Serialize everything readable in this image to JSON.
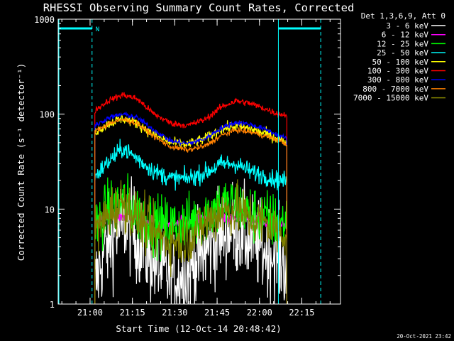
{
  "chart_data": {
    "type": "line",
    "title": "RHESSI Observing Summary Count Rates, Corrected",
    "xlabel": "Start Time (12-Oct-14 20:48:42)",
    "ylabel": "Corrected Count Rate (s⁻¹ detector⁻¹)",
    "yscale": "log",
    "ylim": [
      1,
      1000
    ],
    "xlim_minutes_after_start": [
      0,
      100
    ],
    "x_ticks": [
      "21:00",
      "21:15",
      "21:30",
      "21:45",
      "22:00",
      "22:15"
    ],
    "y_ticks": [
      "1",
      "10",
      "100",
      "1000"
    ],
    "legend_title": "Det 1,3,6,9, Att 0",
    "legend_position": "right, outside plot",
    "footer_date": "20-Oct-2021 23:42",
    "night_marker": "N",
    "data_window_minutes": [
      13,
      81
    ],
    "series": [
      {
        "name": "3 - 6 keV",
        "color": "#ffffff",
        "noise": 0.35,
        "min": 1,
        "profile": [
          [
            13,
            1.5
          ],
          [
            16,
            3.5
          ],
          [
            20,
            5.5
          ],
          [
            24,
            7.5
          ],
          [
            28,
            5
          ],
          [
            33,
            3
          ],
          [
            38,
            2
          ],
          [
            45,
            2
          ],
          [
            52,
            3.5
          ],
          [
            57,
            5.5
          ],
          [
            62,
            6.5
          ],
          [
            67,
            5
          ],
          [
            72,
            4
          ],
          [
            78,
            3
          ],
          [
            81,
            2.5
          ]
        ]
      },
      {
        "name": "6 - 12 keV",
        "color": "#ff00ff",
        "noise": 0.05,
        "min": 1,
        "profile": [
          [
            13,
            7.5
          ],
          [
            17,
            8
          ],
          [
            22,
            8.5
          ],
          [
            26,
            8.5
          ],
          [
            30,
            7.5
          ],
          [
            36,
            7
          ],
          [
            42,
            7
          ],
          [
            48,
            7.5
          ],
          [
            54,
            8
          ],
          [
            60,
            8
          ],
          [
            66,
            8
          ],
          [
            72,
            7.5
          ],
          [
            78,
            7
          ],
          [
            81,
            7
          ]
        ]
      },
      {
        "name": "12 - 25 keV",
        "color": "#00ff00",
        "noise": 0.22,
        "min": 1,
        "profile": [
          [
            13,
            6.5
          ],
          [
            18,
            10
          ],
          [
            23,
            12
          ],
          [
            28,
            9
          ],
          [
            34,
            7
          ],
          [
            40,
            6.5
          ],
          [
            46,
            7
          ],
          [
            52,
            9
          ],
          [
            58,
            11
          ],
          [
            63,
            11
          ],
          [
            68,
            9
          ],
          [
            74,
            8
          ],
          [
            78,
            7
          ],
          [
            81,
            7
          ]
        ]
      },
      {
        "name": "25 - 50 keV",
        "color": "#00ffff",
        "noise": 0.07,
        "min": 1,
        "profile": [
          [
            13,
            22
          ],
          [
            18,
            32
          ],
          [
            23,
            44
          ],
          [
            28,
            34
          ],
          [
            34,
            25
          ],
          [
            40,
            21
          ],
          [
            46,
            21
          ],
          [
            52,
            24
          ],
          [
            58,
            30
          ],
          [
            63,
            30
          ],
          [
            68,
            25
          ],
          [
            74,
            22
          ],
          [
            78,
            20
          ],
          [
            81,
            20
          ]
        ]
      },
      {
        "name": "50 - 100 keV",
        "color": "#ffff00",
        "noise": 0.04,
        "min": 1,
        "profile": [
          [
            13,
            65
          ],
          [
            18,
            80
          ],
          [
            23,
            90
          ],
          [
            28,
            80
          ],
          [
            34,
            60
          ],
          [
            40,
            50
          ],
          [
            46,
            48
          ],
          [
            52,
            55
          ],
          [
            58,
            70
          ],
          [
            63,
            75
          ],
          [
            68,
            70
          ],
          [
            74,
            62
          ],
          [
            78,
            55
          ],
          [
            81,
            50
          ]
        ]
      },
      {
        "name": "100 - 300 keV",
        "color": "#ff0000",
        "noise": 0.025,
        "min": 1,
        "profile": [
          [
            13,
            110
          ],
          [
            18,
            140
          ],
          [
            23,
            160
          ],
          [
            28,
            145
          ],
          [
            34,
            100
          ],
          [
            40,
            80
          ],
          [
            46,
            76
          ],
          [
            52,
            88
          ],
          [
            58,
            120
          ],
          [
            63,
            138
          ],
          [
            68,
            130
          ],
          [
            74,
            112
          ],
          [
            78,
            100
          ],
          [
            81,
            98
          ]
        ]
      },
      {
        "name": "300 - 800 keV",
        "color": "#0000ff",
        "noise": 0.02,
        "min": 1,
        "profile": [
          [
            13,
            75
          ],
          [
            18,
            92
          ],
          [
            23,
            100
          ],
          [
            28,
            92
          ],
          [
            34,
            68
          ],
          [
            40,
            52
          ],
          [
            46,
            49
          ],
          [
            52,
            55
          ],
          [
            58,
            72
          ],
          [
            63,
            82
          ],
          [
            68,
            78
          ],
          [
            74,
            68
          ],
          [
            78,
            60
          ],
          [
            81,
            55
          ]
        ]
      },
      {
        "name": "800 - 7000 keV",
        "color": "#ff8000",
        "noise": 0.02,
        "min": 1,
        "profile": [
          [
            13,
            65
          ],
          [
            18,
            80
          ],
          [
            23,
            88
          ],
          [
            28,
            80
          ],
          [
            34,
            58
          ],
          [
            40,
            45
          ],
          [
            46,
            42
          ],
          [
            52,
            46
          ],
          [
            58,
            60
          ],
          [
            63,
            68
          ],
          [
            68,
            65
          ],
          [
            74,
            58
          ],
          [
            78,
            53
          ],
          [
            81,
            48
          ]
        ]
      },
      {
        "name": "7000 - 15000 keV",
        "color": "#808000",
        "noise": 0.2,
        "min": 1,
        "profile": [
          [
            13,
            5.5
          ],
          [
            18,
            9
          ],
          [
            23,
            12
          ],
          [
            28,
            8
          ],
          [
            34,
            5.5
          ],
          [
            40,
            4.5
          ],
          [
            46,
            5
          ],
          [
            52,
            7
          ],
          [
            58,
            9.5
          ],
          [
            63,
            10
          ],
          [
            68,
            8
          ],
          [
            74,
            7
          ],
          [
            78,
            6
          ],
          [
            81,
            5.5
          ]
        ]
      }
    ],
    "overlay": {
      "color": "#00ffff",
      "dashed_vertical_lines_minutes": [
        12,
        93
      ],
      "solid_vertical_lines_minutes": [
        0,
        78
      ],
      "high_bars_minutes": [
        [
          0,
          12
        ],
        [
          78,
          93
        ]
      ],
      "high_bar_value": 800
    }
  }
}
